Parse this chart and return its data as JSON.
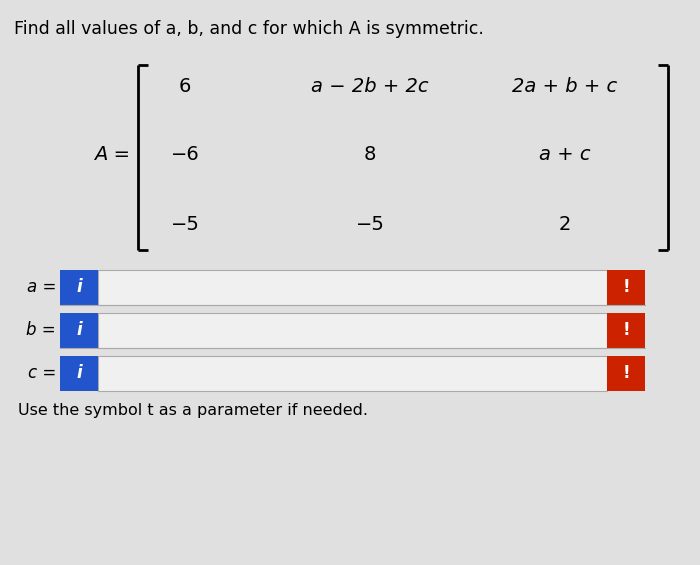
{
  "title": "Find all values of a, b, and c for which A is symmetric.",
  "title_fontsize": 12.5,
  "bg_color": "#e0e0e0",
  "matrix_label": "A =",
  "matrix_rows": [
    [
      "6",
      "a − 2b + 2c",
      "2a + b + c"
    ],
    [
      "−6",
      "8",
      "a + c"
    ],
    [
      "−5",
      "−5",
      "2"
    ]
  ],
  "matrix_italic": [
    [
      false,
      true,
      true
    ],
    [
      false,
      false,
      true
    ],
    [
      false,
      false,
      false
    ]
  ],
  "input_labels": [
    "a =",
    "b =",
    "c ="
  ],
  "blue_color": "#2255cc",
  "red_color": "#cc2200",
  "input_bg": "#f0f0f0",
  "info_icon": "i",
  "exclaim_icon": "!",
  "footer": "Use the symbol t as a parameter if needed.",
  "footer_fontsize": 11.5
}
